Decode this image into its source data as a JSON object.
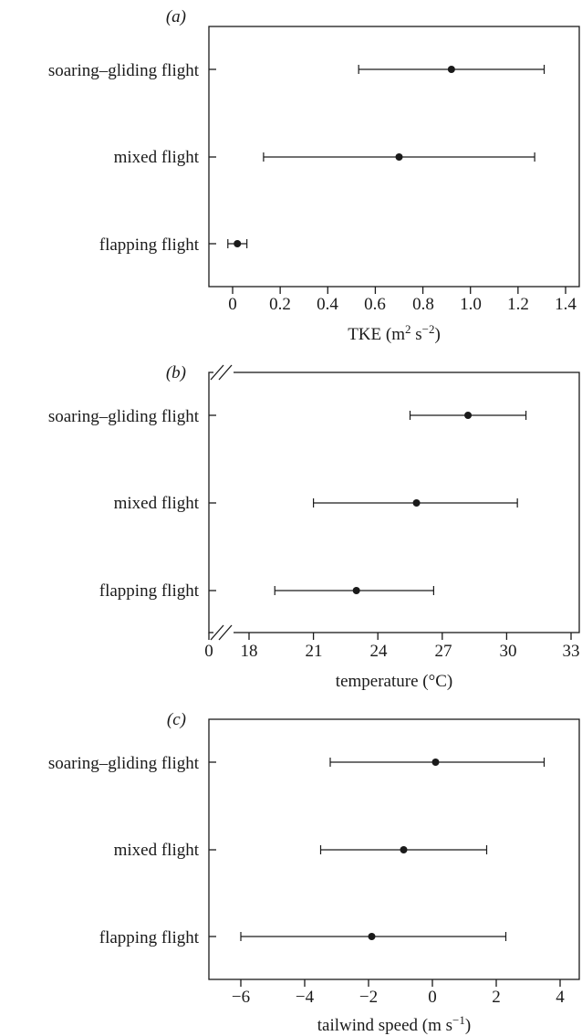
{
  "chart_data": [
    {
      "type": "scatter",
      "panel": "(a)",
      "categories": [
        "soaring–gliding flight",
        "mixed flight",
        "flapping flight"
      ],
      "series": [
        {
          "estimates": [
            0.92,
            0.7,
            0.02
          ],
          "lower": [
            0.53,
            0.13,
            -0.02
          ],
          "upper": [
            1.31,
            1.27,
            0.06
          ]
        }
      ],
      "xticks": [
        "0",
        "0.2",
        "0.4",
        "0.6",
        "0.8",
        "1.0",
        "1.2",
        "1.4"
      ],
      "xlim": [
        -0.1,
        1.45
      ],
      "xlabel": "TKE (m",
      "xlabel_sup1": "2",
      "xlabel_mid": " s",
      "xlabel_sup2": "−2",
      "xlabel_end": ")",
      "axis_break": false
    },
    {
      "type": "scatter",
      "panel": "(b)",
      "categories": [
        "soaring–gliding flight",
        "mixed flight",
        "flapping flight"
      ],
      "series": [
        {
          "estimates": [
            28.2,
            25.8,
            23.0
          ],
          "lower": [
            25.5,
            21.0,
            19.2
          ],
          "upper": [
            30.9,
            30.5,
            26.6
          ]
        }
      ],
      "xticks": [
        "0",
        "18",
        "21",
        "24",
        "27",
        "30",
        "33"
      ],
      "xlim": [
        16.0,
        33.0
      ],
      "xlabel": "temperature (°C)",
      "axis_break": true
    },
    {
      "type": "scatter",
      "panel": "(c)",
      "categories": [
        "soaring–gliding flight",
        "mixed flight",
        "flapping flight"
      ],
      "series": [
        {
          "estimates": [
            0.1,
            -0.9,
            -1.9
          ],
          "lower": [
            -3.2,
            -3.5,
            -6.0
          ],
          "upper": [
            3.5,
            1.7,
            2.3
          ]
        }
      ],
      "xticks": [
        "−6",
        "−4",
        "−2",
        "0",
        "2",
        "4"
      ],
      "xlim": [
        -7.0,
        4.6
      ],
      "xlabel": "tailwind speed (m s",
      "xlabel_sup1": "−1",
      "xlabel_end": ")",
      "axis_break": false
    }
  ]
}
